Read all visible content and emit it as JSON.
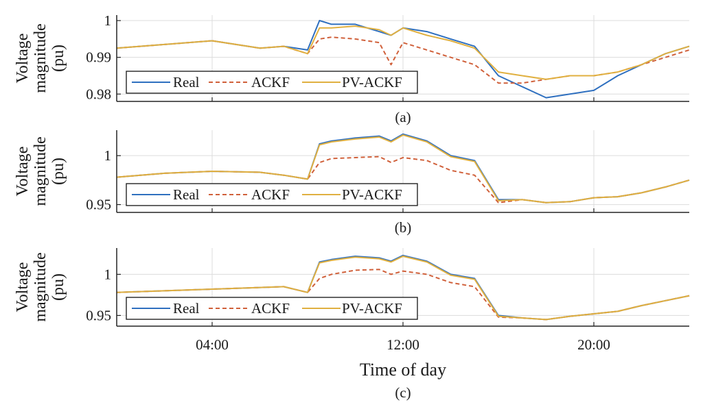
{
  "chart_data": {
    "type": "line",
    "x_unit": "hour of day",
    "xlabel": "Time of day",
    "xlim": [
      0,
      24
    ],
    "xticks": [
      4,
      12,
      20
    ],
    "xtick_labels": [
      "04:00",
      "12:00",
      "20:00"
    ],
    "grid": true,
    "legend_location": "lower-left",
    "colors": {
      "Real": "#2e6fbf",
      "ACKF": "#d0603a",
      "PV-ACKF": "#e0b040"
    },
    "panels": [
      {
        "caption": "(a)",
        "ylabel": [
          "Voltage",
          "magnitude",
          "(pu)"
        ],
        "ylim": [
          0.978,
          1.0015
        ],
        "yticks": [
          0.98,
          0.99,
          1.0
        ],
        "ytick_labels": [
          "0.98",
          "0.99",
          "1"
        ],
        "x": [
          0,
          2,
          4,
          6,
          7,
          8,
          8.5,
          9,
          10,
          11,
          11.5,
          12,
          13,
          14,
          15,
          16,
          17,
          18,
          19,
          20,
          21,
          22,
          23,
          24
        ],
        "series": [
          {
            "name": "Real",
            "style": "solid",
            "values": [
              0.9925,
              0.9935,
              0.9945,
              0.9925,
              0.993,
              0.992,
              1.0,
              0.999,
              0.999,
              0.997,
              0.996,
              0.998,
              0.997,
              0.995,
              0.993,
              0.985,
              0.982,
              0.979,
              0.98,
              0.981,
              0.985,
              0.988,
              0.991,
              0.993
            ]
          },
          {
            "name": "ACKF",
            "style": "dashed",
            "values": [
              0.9925,
              0.9935,
              0.9945,
              0.9925,
              0.993,
              0.991,
              0.995,
              0.9955,
              0.995,
              0.994,
              0.988,
              0.994,
              0.992,
              0.99,
              0.988,
              0.983,
              0.983,
              0.984,
              0.985,
              0.985,
              0.986,
              0.988,
              0.99,
              0.992
            ]
          },
          {
            "name": "PV-ACKF",
            "style": "solid",
            "values": [
              0.9925,
              0.9935,
              0.9945,
              0.9925,
              0.993,
              0.991,
              0.998,
              0.998,
              0.9985,
              0.9975,
              0.996,
              0.998,
              0.996,
              0.9945,
              0.9925,
              0.986,
              0.985,
              0.984,
              0.985,
              0.985,
              0.986,
              0.988,
              0.991,
              0.993
            ]
          }
        ]
      },
      {
        "caption": "(b)",
        "ylabel": [
          "Voltage",
          "magnitude",
          "(pu)"
        ],
        "ylim": [
          0.942,
          1.026
        ],
        "yticks": [
          0.95,
          1.0
        ],
        "ytick_labels": [
          "0.95",
          "1"
        ],
        "x": [
          0,
          2,
          4,
          6,
          7,
          8,
          8.5,
          9,
          10,
          11,
          11.5,
          12,
          13,
          14,
          15,
          16,
          17,
          18,
          19,
          20,
          21,
          22,
          23,
          24
        ],
        "series": [
          {
            "name": "Real",
            "style": "solid",
            "values": [
              0.978,
              0.982,
              0.984,
              0.983,
              0.98,
              0.976,
              1.012,
              1.015,
              1.018,
              1.02,
              1.015,
              1.022,
              1.015,
              1.0,
              0.995,
              0.955,
              0.955,
              0.952,
              0.953,
              0.957,
              0.958,
              0.962,
              0.968,
              0.975
            ]
          },
          {
            "name": "ACKF",
            "style": "dashed",
            "values": [
              0.978,
              0.982,
              0.984,
              0.983,
              0.98,
              0.976,
              0.993,
              0.997,
              0.998,
              0.999,
              0.993,
              0.998,
              0.995,
              0.985,
              0.98,
              0.952,
              0.955,
              0.952,
              0.953,
              0.957,
              0.958,
              0.962,
              0.968,
              0.975
            ]
          },
          {
            "name": "PV-ACKF",
            "style": "solid",
            "values": [
              0.978,
              0.982,
              0.984,
              0.983,
              0.98,
              0.976,
              1.011,
              1.014,
              1.017,
              1.019,
              1.014,
              1.021,
              1.014,
              0.999,
              0.994,
              0.954,
              0.955,
              0.952,
              0.953,
              0.957,
              0.958,
              0.962,
              0.968,
              0.975
            ]
          }
        ]
      },
      {
        "caption": "(c)",
        "ylabel": [
          "Voltage",
          "magnitude",
          "(pu)"
        ],
        "ylim": [
          0.937,
          1.032
        ],
        "yticks": [
          0.95,
          1.0
        ],
        "ytick_labels": [
          "0.95",
          "1"
        ],
        "x": [
          0,
          2,
          4,
          6,
          7,
          8,
          8.5,
          9,
          10,
          11,
          11.5,
          12,
          13,
          14,
          15,
          16,
          17,
          18,
          19,
          20,
          21,
          22,
          23,
          24
        ],
        "series": [
          {
            "name": "Real",
            "style": "solid",
            "values": [
              0.978,
              0.98,
              0.982,
              0.984,
              0.985,
              0.978,
              1.015,
              1.018,
              1.022,
              1.02,
              1.016,
              1.023,
              1.016,
              1.0,
              0.995,
              0.95,
              0.947,
              0.945,
              0.949,
              0.952,
              0.955,
              0.962,
              0.968,
              0.974
            ]
          },
          {
            "name": "ACKF",
            "style": "dashed",
            "values": [
              0.978,
              0.98,
              0.982,
              0.984,
              0.985,
              0.978,
              0.995,
              1.0,
              1.005,
              1.006,
              1.0,
              1.004,
              1.0,
              0.99,
              0.985,
              0.948,
              0.947,
              0.945,
              0.949,
              0.952,
              0.955,
              0.962,
              0.968,
              0.974
            ]
          },
          {
            "name": "PV-ACKF",
            "style": "solid",
            "values": [
              0.978,
              0.98,
              0.982,
              0.984,
              0.985,
              0.978,
              1.014,
              1.017,
              1.021,
              1.019,
              1.015,
              1.022,
              1.015,
              0.999,
              0.994,
              0.949,
              0.947,
              0.945,
              0.949,
              0.952,
              0.955,
              0.962,
              0.968,
              0.974
            ]
          }
        ]
      }
    ]
  }
}
